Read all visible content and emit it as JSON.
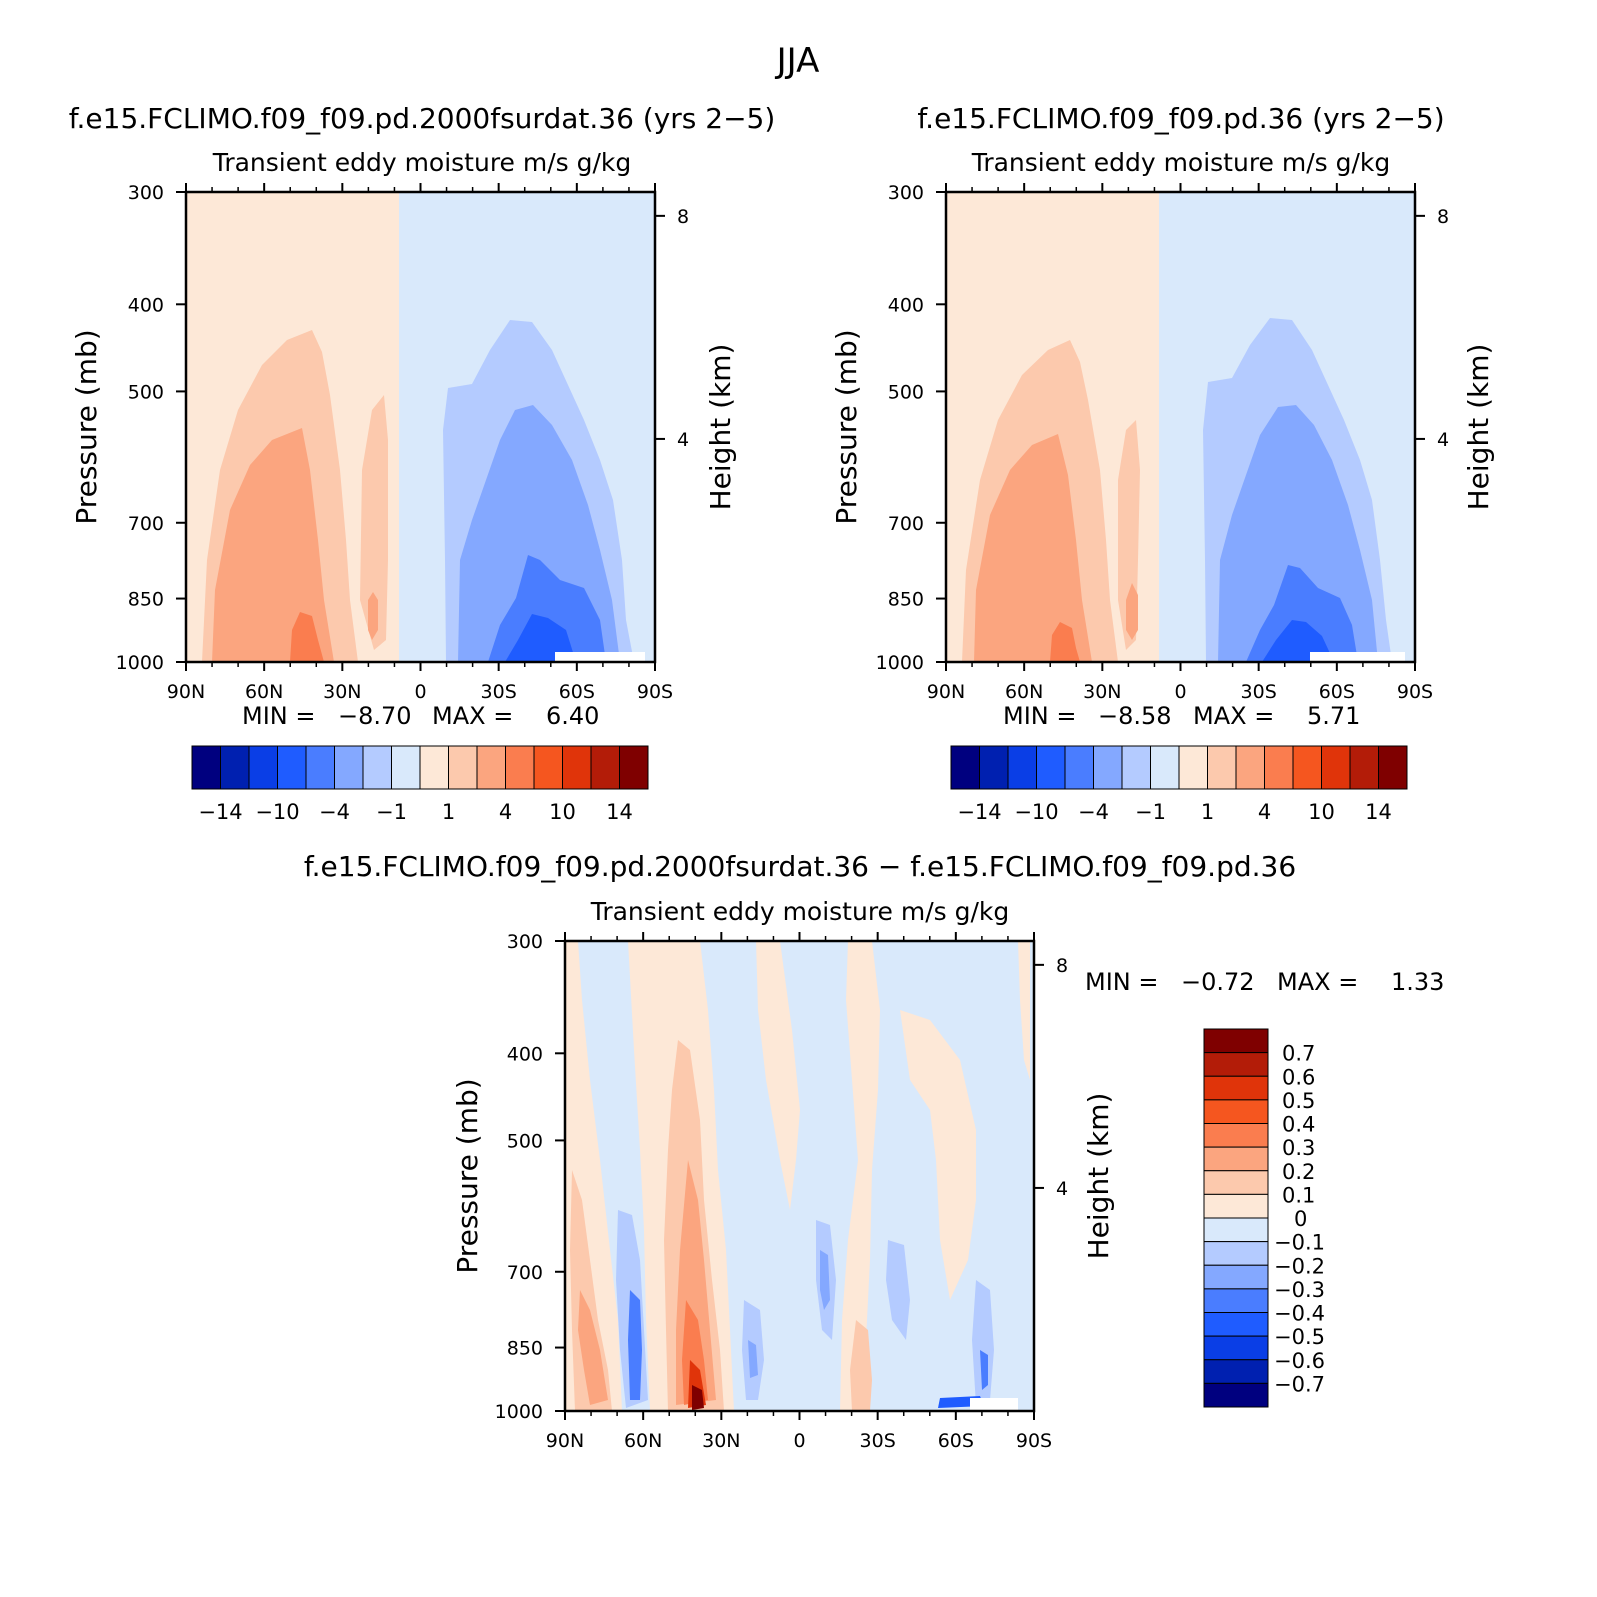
{
  "page_title": "JJA",
  "panels": [
    {
      "title": "f.e15.FCLIMO.f09_f09.pd.2000fsurdat.36 (yrs 2−5)",
      "subtitle": "Transient eddy moisture m/s g/kg",
      "ylabel": "Pressure (mb)",
      "y2label": "Height (km)",
      "stats": {
        "min_label": "MIN =",
        "min": "−8.70",
        "max_label": "MAX =",
        "max": "6.40"
      }
    },
    {
      "title": "f.e15.FCLIMO.f09_f09.pd.36 (yrs 2−5)",
      "subtitle": "Transient eddy moisture m/s g/kg",
      "ylabel": "Pressure (mb)",
      "y2label": "Height (km)",
      "stats": {
        "min_label": "MIN =",
        "min": "−8.58",
        "max_label": "MAX =",
        "max": "5.71"
      }
    },
    {
      "title": "f.e15.FCLIMO.f09_f09.pd.2000fsurdat.36 − f.e15.FCLIMO.f09_f09.pd.36",
      "subtitle": "Transient eddy moisture m/s g/kg",
      "ylabel": "Pressure (mb)",
      "y2label": "Height (km)",
      "stats": {
        "min_label": "MIN =",
        "min": "−0.72",
        "max_label": "MAX =",
        "max": "1.33"
      }
    }
  ],
  "colorbars": {
    "top": {
      "colors": [
        "#00007f",
        "#0020b0",
        "#0a3ee6",
        "#1f5cff",
        "#4a7dff",
        "#84a8ff",
        "#b4cbff",
        "#d9e9fb",
        "#fde8d7",
        "#fcc9ad",
        "#fba57f",
        "#fa7d4f",
        "#f5561f",
        "#e0340a",
        "#b31c08",
        "#7f0000"
      ],
      "labels": [
        "−14",
        "−10",
        "−4",
        "−1",
        "1",
        "4",
        "10",
        "14"
      ]
    },
    "diff": {
      "colors": [
        "#7f0000",
        "#b31c08",
        "#e0340a",
        "#f5561f",
        "#fa7d4f",
        "#fba57f",
        "#fcc9ad",
        "#fde8d7",
        "#d9e9fb",
        "#b4cbff",
        "#84a8ff",
        "#4a7dff",
        "#1f5cff",
        "#0a3ee6",
        "#0020b0",
        "#00007f"
      ],
      "labels": [
        "0.7",
        "0.6",
        "0.5",
        "0.4",
        "0.3",
        "0.2",
        "0.1",
        "0",
        "−0.1",
        "−0.2",
        "−0.3",
        "−0.4",
        "−0.5",
        "−0.6",
        "−0.7"
      ]
    }
  },
  "chart_data": [
    {
      "type": "heatmap",
      "title": "f.e15.FCLIMO.f09_f09.pd.2000fsurdat.36 (yrs 2−5)",
      "subtitle": "Transient eddy moisture m/s g/kg",
      "ylabel": "Pressure (mb)",
      "y2label": "Height (km)",
      "x_ticks": [
        "90N",
        "60N",
        "30N",
        "0",
        "30S",
        "60S",
        "90S"
      ],
      "xlim": [
        90,
        -90
      ],
      "y_ticks": [
        300,
        400,
        500,
        700,
        850,
        1000
      ],
      "ylim": [
        1000,
        300
      ],
      "y_scale": "log",
      "y2_ticks": [
        "8",
        "4"
      ],
      "min": -8.7,
      "max": 6.4,
      "levels": [
        "−14",
        "−10",
        "−4",
        "−1",
        "1",
        "4",
        "10",
        "14"
      ]
    },
    {
      "type": "heatmap",
      "title": "f.e15.FCLIMO.f09_f09.pd.36 (yrs 2−5)",
      "subtitle": "Transient eddy moisture m/s g/kg",
      "ylabel": "Pressure (mb)",
      "y2label": "Height (km)",
      "x_ticks": [
        "90N",
        "60N",
        "30N",
        "0",
        "30S",
        "60S",
        "90S"
      ],
      "xlim": [
        90,
        -90
      ],
      "y_ticks": [
        300,
        400,
        500,
        700,
        850,
        1000
      ],
      "ylim": [
        1000,
        300
      ],
      "y_scale": "log",
      "y2_ticks": [
        "8",
        "4"
      ],
      "min": -8.58,
      "max": 5.71,
      "levels": [
        "−14",
        "−10",
        "−4",
        "−1",
        "1",
        "4",
        "10",
        "14"
      ]
    },
    {
      "type": "heatmap",
      "title": "f.e15.FCLIMO.f09_f09.pd.2000fsurdat.36 − f.e15.FCLIMO.f09_f09.pd.36",
      "subtitle": "Transient eddy moisture m/s g/kg",
      "ylabel": "Pressure (mb)",
      "y2label": "Height (km)",
      "x_ticks": [
        "90N",
        "60N",
        "30N",
        "0",
        "30S",
        "60S",
        "90S"
      ],
      "xlim": [
        90,
        -90
      ],
      "y_ticks": [
        300,
        400,
        500,
        700,
        850,
        1000
      ],
      "ylim": [
        1000,
        300
      ],
      "y_scale": "log",
      "y2_ticks": [
        "8",
        "4"
      ],
      "min": -0.72,
      "max": 1.33,
      "levels": [
        "0.7",
        "0.6",
        "0.5",
        "0.4",
        "0.3",
        "0.2",
        "0.1",
        "0",
        "−0.1",
        "−0.2",
        "−0.3",
        "−0.4",
        "−0.5",
        "−0.6",
        "−0.7"
      ]
    }
  ]
}
